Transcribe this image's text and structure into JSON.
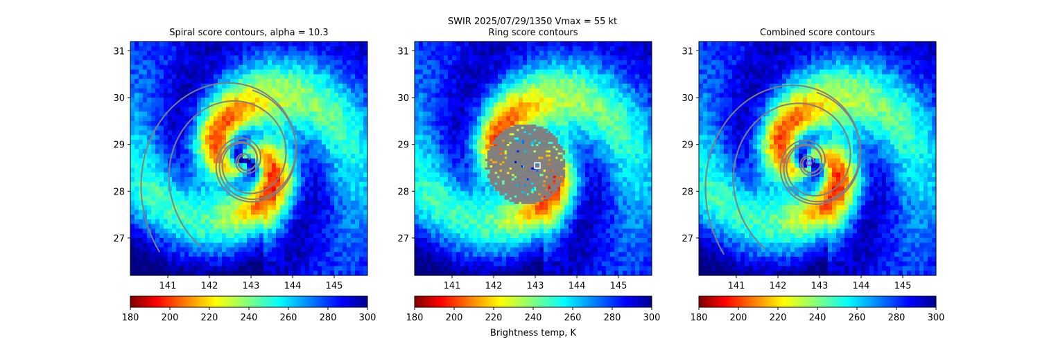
{
  "suptitle_line1": "SWIR  2025/07/29/1350    Vmax = 55 kt",
  "colorbar_label": "Brightness temp, K",
  "colors": {
    "contour": "#808080",
    "ring_mask": "#808080",
    "center_marker": "#cc33cc",
    "square_marker": "#ffffff"
  },
  "chart_data": [
    {
      "type": "heatmap",
      "title": "Spiral score contours, alpha = 10.3",
      "xlim": [
        140.1,
        145.8
      ],
      "ylim": [
        26.2,
        31.2
      ],
      "xticks": [
        "141",
        "142",
        "143",
        "144",
        "145"
      ],
      "yticks": [
        "27",
        "28",
        "29",
        "30",
        "31"
      ],
      "colorbar": {
        "cmap": "jet_r",
        "range": [
          180,
          300
        ],
        "ticks": [
          "180",
          "200",
          "220",
          "240",
          "260",
          "280",
          "300"
        ]
      },
      "overlay": "spiral contours",
      "center": [
        142.85,
        28.65
      ]
    },
    {
      "type": "heatmap",
      "title": "Ring score contours",
      "xlim": [
        140.1,
        145.8
      ],
      "ylim": [
        26.2,
        31.2
      ],
      "xticks": [
        "141",
        "142",
        "143",
        "144",
        "145"
      ],
      "yticks": [
        "27",
        "28",
        "29",
        "30",
        "31"
      ],
      "colorbar": {
        "cmap": "jet_r",
        "range": [
          180,
          300
        ],
        "ticks": [
          "180",
          "200",
          "220",
          "240",
          "260",
          "280",
          "300"
        ]
      },
      "overlay": "ring score mask",
      "marker": {
        "shape": "square",
        "lon": 143.05,
        "lat": 28.55
      },
      "center": [
        142.75,
        28.6
      ]
    },
    {
      "type": "heatmap",
      "title": "Combined score contours",
      "xlim": [
        140.1,
        145.8
      ],
      "ylim": [
        26.2,
        31.2
      ],
      "xticks": [
        "141",
        "142",
        "143",
        "144",
        "145"
      ],
      "yticks": [
        "27",
        "28",
        "29",
        "30",
        "31"
      ],
      "colorbar": {
        "cmap": "jet_r",
        "range": [
          180,
          300
        ],
        "ticks": [
          "180",
          "200",
          "220",
          "240",
          "260",
          "280",
          "300"
        ]
      },
      "overlay": "spiral contours",
      "marker": {
        "shape": "circle",
        "lon": 142.75,
        "lat": 28.6
      },
      "center": [
        142.75,
        28.6
      ]
    }
  ]
}
